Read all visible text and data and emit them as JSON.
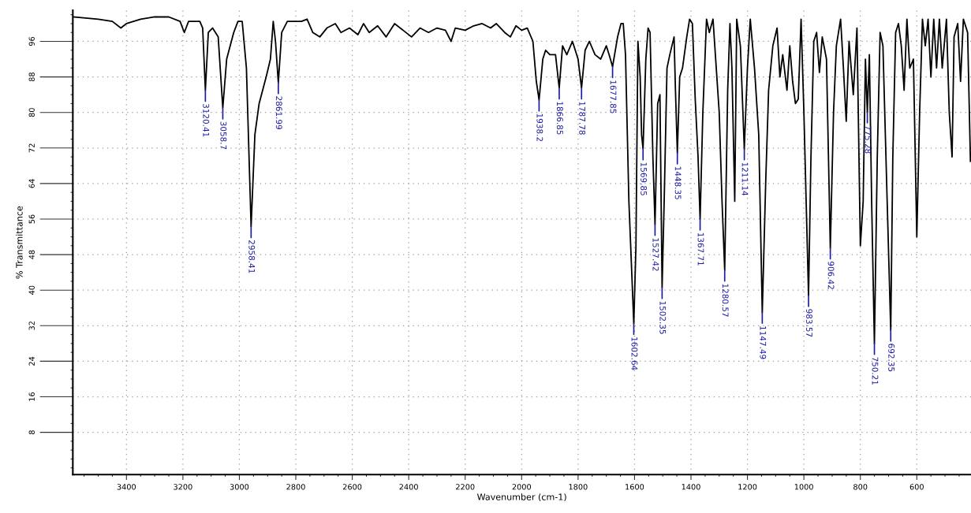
{
  "chart_data": {
    "type": "line",
    "xlabel": "Wavenumber (cm-1)",
    "ylabel": "% Transmittance",
    "xlim": [
      3590,
      408
    ],
    "ylim": [
      -1.5,
      103
    ],
    "xticks": [
      3400,
      3200,
      3000,
      2800,
      2600,
      2400,
      2200,
      2000,
      1800,
      1600,
      1400,
      1200,
      1000,
      800,
      600
    ],
    "yticks": [
      8,
      16,
      24,
      32,
      40,
      48,
      56,
      64,
      72,
      80,
      88,
      96
    ],
    "grid": true,
    "series": [
      {
        "color": "#000000",
        "x": [
          3590,
          3500,
          3450,
          3420,
          3400,
          3350,
          3300,
          3250,
          3210,
          3195,
          3180,
          3140,
          3130,
          3120.41,
          3110,
          3095,
          3075,
          3058.7,
          3045,
          3020,
          3005,
          2990,
          2975,
          2958.41,
          2945,
          2930,
          2905,
          2890,
          2880,
          2872,
          2861.99,
          2850,
          2830,
          2780,
          2760,
          2740,
          2715,
          2690,
          2660,
          2640,
          2610,
          2580,
          2560,
          2540,
          2510,
          2480,
          2450,
          2420,
          2390,
          2360,
          2330,
          2300,
          2270,
          2250,
          2235,
          2200,
          2170,
          2140,
          2110,
          2090,
          2060,
          2040,
          2020,
          2000,
          1980,
          1960,
          1948,
          1938.2,
          1925,
          1915,
          1900,
          1880,
          1866.85,
          1855,
          1840,
          1820,
          1800,
          1787.78,
          1775,
          1760,
          1740,
          1720,
          1700,
          1690,
          1677.85,
          1660,
          1648,
          1640,
          1632,
          1620,
          1602.64,
          1595,
          1588,
          1580,
          1575,
          1569.85,
          1560,
          1552,
          1545,
          1535,
          1527.42,
          1518,
          1510,
          1502.35,
          1495,
          1485,
          1475,
          1460,
          1455,
          1448.35,
          1440,
          1430,
          1415,
          1405,
          1395,
          1385,
          1375,
          1367.71,
          1358,
          1345,
          1335,
          1322,
          1300,
          1290,
          1280.57,
          1270,
          1262,
          1255,
          1245,
          1238,
          1225,
          1211.14,
          1200,
          1190,
          1175,
          1160,
          1147.49,
          1135,
          1125,
          1110,
          1095,
          1085,
          1075,
          1060,
          1050,
          1040,
          1030,
          1020,
          1010,
          1000,
          983.57,
          975,
          965,
          955,
          945,
          935,
          920,
          906.42,
          895,
          885,
          870,
          860,
          850,
          840,
          825,
          812,
          800,
          790,
          782,
          775.28,
          768,
          760,
          750.21,
          740,
          730,
          720,
          705,
          692.35,
          685,
          675,
          665,
          655,
          645,
          635,
          625,
          612,
          600,
          590,
          580,
          570,
          560,
          550,
          540,
          530,
          520,
          510,
          495,
          485,
          475,
          468,
          455,
          445,
          435,
          420,
          410
        ],
        "values": [
          101.5,
          101,
          100.5,
          99,
          100,
          101,
          101.5,
          101.5,
          100.5,
          98,
          100.5,
          100.5,
          99,
          85,
          98,
          99,
          97,
          81,
          92,
          98,
          100.5,
          100.5,
          90,
          54.3,
          75,
          82,
          88,
          92,
          100.5,
          96,
          86.7,
          98,
          100.5,
          100.5,
          101,
          98,
          97,
          99,
          100,
          98,
          99,
          97.5,
          100,
          98,
          99.5,
          97,
          100,
          98.5,
          97,
          99,
          98,
          99,
          98.5,
          96,
          99,
          98.5,
          99.5,
          100,
          99,
          100,
          98,
          97,
          99.5,
          98.5,
          99,
          96,
          87,
          82.8,
          92,
          94,
          93,
          93,
          85.5,
          95,
          93,
          96,
          92,
          85.5,
          94,
          96,
          93,
          92,
          95,
          93,
          90.3,
          97,
          100,
          100,
          93,
          60,
          32.5,
          50,
          96,
          88,
          75,
          71.8,
          92,
          99,
          98,
          70,
          54.8,
          82,
          84,
          40.6,
          60,
          90,
          93,
          97,
          85,
          70.9,
          88,
          90,
          97,
          101,
          100,
          83,
          70,
          56,
          80,
          101,
          98,
          101,
          80,
          60,
          44.5,
          85,
          100,
          90,
          60,
          101,
          95,
          71.8,
          90,
          101,
          90,
          75,
          35,
          65,
          85,
          95,
          99,
          88,
          93,
          85,
          95,
          87,
          82,
          83,
          101,
          80,
          38.8,
          70,
          96,
          98,
          89,
          97,
          92,
          49.5,
          80,
          95,
          101,
          90,
          78,
          96,
          84,
          99,
          50,
          60,
          92,
          80.1,
          93,
          60,
          28,
          70,
          98,
          95,
          60,
          31,
          70,
          98,
          100,
          95,
          85,
          101,
          90,
          92,
          52,
          80,
          101,
          95,
          101,
          88,
          101,
          90,
          101,
          90,
          101,
          80,
          70,
          97,
          100,
          87,
          101,
          98,
          69
        ]
      }
    ],
    "annotations": [
      {
        "text": "3120.41",
        "x": 3120.41,
        "y": 85
      },
      {
        "text": "3058.7",
        "x": 3058.7,
        "y": 81
      },
      {
        "text": "2958.41",
        "x": 2958.41,
        "y": 54.3
      },
      {
        "text": "2861.99",
        "x": 2861.99,
        "y": 86.7
      },
      {
        "text": "1938.2",
        "x": 1938.2,
        "y": 82.8
      },
      {
        "text": "1866.85",
        "x": 1866.85,
        "y": 85.5
      },
      {
        "text": "1787.78",
        "x": 1787.78,
        "y": 85.5
      },
      {
        "text": "1677.85",
        "x": 1677.85,
        "y": 90.3
      },
      {
        "text": "1602.64",
        "x": 1602.64,
        "y": 32.5
      },
      {
        "text": "1569.85",
        "x": 1569.85,
        "y": 71.8
      },
      {
        "text": "1527.42",
        "x": 1527.42,
        "y": 54.8
      },
      {
        "text": "1502.35",
        "x": 1502.35,
        "y": 40.6
      },
      {
        "text": "1448.35",
        "x": 1448.35,
        "y": 70.9
      },
      {
        "text": "1367.71",
        "x": 1367.71,
        "y": 56
      },
      {
        "text": "1280.57",
        "x": 1280.57,
        "y": 44.5
      },
      {
        "text": "1211.14",
        "x": 1211.14,
        "y": 71.8
      },
      {
        "text": "1147.49",
        "x": 1147.49,
        "y": 35
      },
      {
        "text": "983.57",
        "x": 983.57,
        "y": 38.8
      },
      {
        "text": "906.42",
        "x": 906.42,
        "y": 49.5
      },
      {
        "text": "775.28",
        "x": 775.28,
        "y": 80.1
      },
      {
        "text": "750.21",
        "x": 750.21,
        "y": 28
      },
      {
        "text": "692.35",
        "x": 692.35,
        "y": 31
      }
    ]
  }
}
